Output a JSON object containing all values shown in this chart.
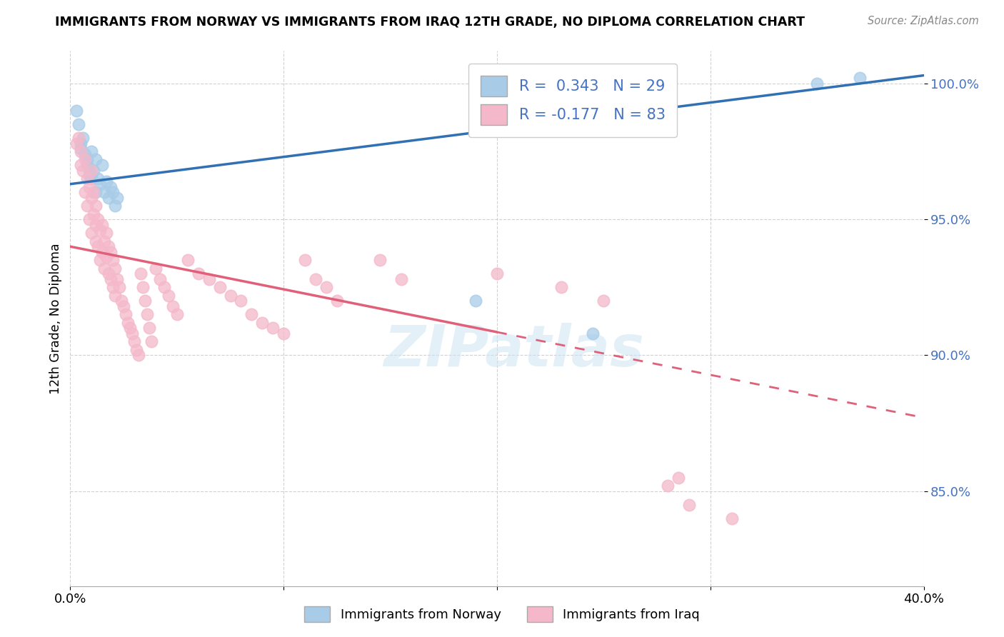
{
  "title": "IMMIGRANTS FROM NORWAY VS IMMIGRANTS FROM IRAQ 12TH GRADE, NO DIPLOMA CORRELATION CHART",
  "source": "Source: ZipAtlas.com",
  "ylabel": "12th Grade, No Diploma",
  "xlim": [
    0.0,
    0.4
  ],
  "ylim": [
    0.815,
    1.012
  ],
  "yticks": [
    0.85,
    0.9,
    0.95,
    1.0
  ],
  "ytick_labels": [
    "85.0%",
    "90.0%",
    "95.0%",
    "100.0%"
  ],
  "xticks": [
    0.0,
    0.1,
    0.2,
    0.3,
    0.4
  ],
  "xtick_labels": [
    "0.0%",
    "",
    "",
    "",
    "40.0%"
  ],
  "norway_R": 0.343,
  "norway_N": 29,
  "iraq_R": -0.177,
  "iraq_N": 83,
  "norway_color": "#a8cce8",
  "iraq_color": "#f4b8ca",
  "norway_line_color": "#3070b3",
  "iraq_line_color": "#e0607a",
  "background_color": "#ffffff",
  "watermark": "ZIPatlas",
  "norway_line_x0": 0.0,
  "norway_line_y0": 0.963,
  "norway_line_x1": 0.4,
  "norway_line_y1": 1.003,
  "iraq_line_x0": 0.0,
  "iraq_line_y0": 0.94,
  "iraq_line_x1": 0.4,
  "iraq_line_y1": 0.877,
  "norway_scatter_x": [
    0.003,
    0.004,
    0.005,
    0.005,
    0.006,
    0.007,
    0.008,
    0.008,
    0.009,
    0.009,
    0.01,
    0.01,
    0.011,
    0.012,
    0.012,
    0.013,
    0.014,
    0.015,
    0.016,
    0.017,
    0.018,
    0.019,
    0.02,
    0.021,
    0.022,
    0.19,
    0.245,
    0.35,
    0.37
  ],
  "norway_scatter_y": [
    0.99,
    0.985,
    0.976,
    0.978,
    0.98,
    0.974,
    0.972,
    0.97,
    0.968,
    0.966,
    0.965,
    0.975,
    0.968,
    0.972,
    0.96,
    0.965,
    0.963,
    0.97,
    0.96,
    0.964,
    0.958,
    0.962,
    0.96,
    0.955,
    0.958,
    0.92,
    0.908,
    1.0,
    1.002
  ],
  "iraq_scatter_x": [
    0.003,
    0.004,
    0.005,
    0.005,
    0.006,
    0.007,
    0.007,
    0.008,
    0.008,
    0.009,
    0.009,
    0.01,
    0.01,
    0.01,
    0.011,
    0.011,
    0.012,
    0.012,
    0.012,
    0.013,
    0.013,
    0.014,
    0.014,
    0.015,
    0.015,
    0.016,
    0.016,
    0.017,
    0.017,
    0.018,
    0.018,
    0.019,
    0.019,
    0.02,
    0.02,
    0.021,
    0.021,
    0.022,
    0.023,
    0.024,
    0.025,
    0.026,
    0.027,
    0.028,
    0.029,
    0.03,
    0.031,
    0.032,
    0.033,
    0.034,
    0.035,
    0.036,
    0.037,
    0.038,
    0.04,
    0.042,
    0.044,
    0.046,
    0.048,
    0.05,
    0.055,
    0.06,
    0.065,
    0.07,
    0.075,
    0.08,
    0.085,
    0.09,
    0.095,
    0.1,
    0.11,
    0.115,
    0.12,
    0.125,
    0.145,
    0.155,
    0.2,
    0.23,
    0.25,
    0.28,
    0.29,
    0.31,
    0.285
  ],
  "iraq_scatter_y": [
    0.978,
    0.98,
    0.975,
    0.97,
    0.968,
    0.972,
    0.96,
    0.965,
    0.955,
    0.962,
    0.95,
    0.968,
    0.958,
    0.945,
    0.96,
    0.952,
    0.955,
    0.948,
    0.942,
    0.95,
    0.94,
    0.946,
    0.935,
    0.948,
    0.938,
    0.942,
    0.932,
    0.945,
    0.936,
    0.94,
    0.93,
    0.938,
    0.928,
    0.935,
    0.925,
    0.932,
    0.922,
    0.928,
    0.925,
    0.92,
    0.918,
    0.915,
    0.912,
    0.91,
    0.908,
    0.905,
    0.902,
    0.9,
    0.93,
    0.925,
    0.92,
    0.915,
    0.91,
    0.905,
    0.932,
    0.928,
    0.925,
    0.922,
    0.918,
    0.915,
    0.935,
    0.93,
    0.928,
    0.925,
    0.922,
    0.92,
    0.915,
    0.912,
    0.91,
    0.908,
    0.935,
    0.928,
    0.925,
    0.92,
    0.935,
    0.928,
    0.93,
    0.925,
    0.92,
    0.852,
    0.845,
    0.84,
    0.855
  ]
}
